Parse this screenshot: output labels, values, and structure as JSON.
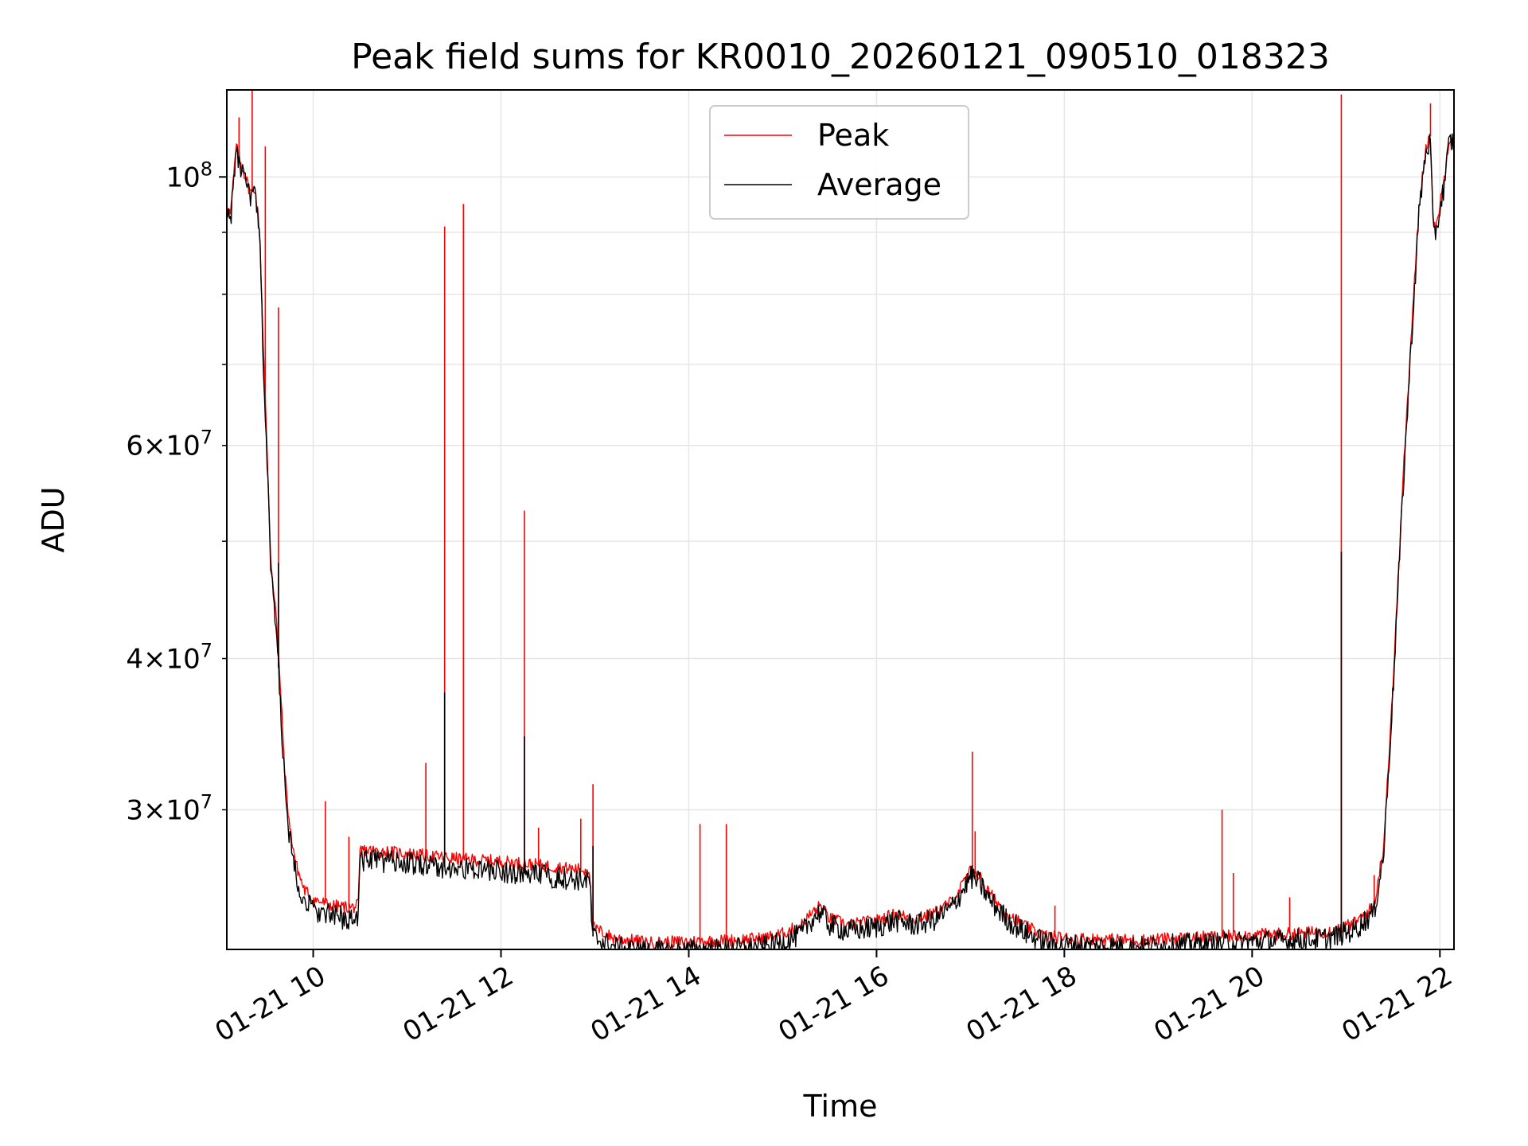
{
  "chart_data": {
    "type": "line",
    "title": "Peak field sums for KR0010_20260121_090510_018323",
    "xlabel": "Time",
    "ylabel": "ADU",
    "yscale": "log",
    "xlim": [
      9.08,
      22.15
    ],
    "ylim": [
      23000000,
      118000000
    ],
    "grid": true,
    "legend": {
      "location": "upper-center",
      "entries": [
        "Peak",
        "Average"
      ]
    },
    "x_ticks": [
      {
        "value": 10,
        "label": "01-21 10"
      },
      {
        "value": 12,
        "label": "01-21 12"
      },
      {
        "value": 14,
        "label": "01-21 14"
      },
      {
        "value": 16,
        "label": "01-21 16"
      },
      {
        "value": 18,
        "label": "01-21 18"
      },
      {
        "value": 20,
        "label": "01-21 20"
      },
      {
        "value": 22,
        "label": "01-21 22"
      }
    ],
    "y_ticks_major": [
      {
        "value": 100000000,
        "base": "10",
        "exp": "8"
      }
    ],
    "y_ticks_minor": [
      {
        "value": 30000000,
        "mant": "3",
        "base": "10",
        "exp": "7"
      },
      {
        "value": 40000000,
        "mant": "4",
        "base": "10",
        "exp": "7"
      },
      {
        "value": 60000000,
        "mant": "6",
        "base": "10",
        "exp": "7"
      }
    ],
    "y_minor_grid": [
      20000000,
      30000000,
      40000000,
      50000000,
      60000000,
      70000000,
      80000000,
      90000000
    ],
    "series": [
      {
        "name": "Peak",
        "color": "#ff0000",
        "x": [
          9.08,
          9.12,
          9.18,
          9.22,
          9.28,
          9.33,
          9.38,
          9.43,
          9.47,
          9.5,
          9.55,
          9.6,
          9.65,
          9.7,
          9.75,
          9.82,
          9.9,
          10.0,
          10.2,
          10.4,
          10.48,
          10.5,
          10.8,
          11.2,
          11.6,
          12.0,
          12.4,
          12.8,
          12.95,
          12.97,
          13.2,
          13.6,
          14.0,
          14.4,
          14.8,
          15.0,
          15.2,
          15.3,
          15.4,
          15.5,
          15.7,
          16.0,
          16.2,
          16.4,
          16.6,
          16.8,
          16.9,
          17.0,
          17.1,
          17.2,
          17.4,
          17.6,
          17.8,
          18.0,
          18.4,
          18.8,
          19.2,
          19.6,
          20.0,
          20.4,
          20.8,
          20.9,
          21.1,
          21.3,
          21.4,
          21.5,
          21.6,
          21.7,
          21.78,
          21.85,
          21.9,
          21.93,
          21.97,
          22.05,
          22.1,
          22.15
        ],
        "y": [
          95000000,
          93000000,
          106000000,
          103000000,
          100000000,
          97000000,
          98000000,
          90000000,
          72000000,
          62000000,
          48000000,
          44000000,
          38000000,
          32000000,
          29000000,
          27000000,
          25800000,
          25300000,
          25000000,
          24900000,
          25000000,
          27800000,
          27700000,
          27500000,
          27300000,
          27200000,
          27000000,
          26800000,
          26700000,
          24000000,
          23500000,
          23300000,
          23350000,
          23400000,
          23500000,
          23700000,
          24100000,
          24600000,
          25000000,
          24400000,
          24100000,
          24300000,
          24600000,
          24400000,
          24600000,
          25200000,
          25900000,
          26700000,
          26400000,
          25600000,
          24600000,
          24000000,
          23600000,
          23500000,
          23450000,
          23400000,
          23500000,
          23550000,
          23650000,
          23700000,
          23800000,
          23900000,
          24200000,
          25000000,
          28000000,
          38000000,
          55000000,
          75000000,
          95000000,
          106000000,
          108000000,
          90000000,
          92000000,
          100000000,
          108000000,
          108000000
        ],
        "spikes": [
          [
            9.21,
            112000000
          ],
          [
            9.35,
            119000000
          ],
          [
            9.49,
            106000000
          ],
          [
            9.63,
            78000000
          ],
          [
            10.13,
            30500000
          ],
          [
            10.38,
            28500000
          ],
          [
            11.2,
            32800000
          ],
          [
            11.4,
            91000000
          ],
          [
            11.6,
            95000000
          ],
          [
            12.25,
            53000000
          ],
          [
            12.4,
            29000000
          ],
          [
            12.85,
            29500000
          ],
          [
            12.98,
            31500000
          ],
          [
            14.12,
            29200000
          ],
          [
            14.4,
            29200000
          ],
          [
            15.35,
            24500000
          ],
          [
            16.2,
            24700000
          ],
          [
            17.02,
            33500000
          ],
          [
            17.05,
            28800000
          ],
          [
            17.9,
            25000000
          ],
          [
            19.68,
            30000000
          ],
          [
            19.8,
            26600000
          ],
          [
            20.4,
            25400000
          ],
          [
            20.95,
            117000000
          ],
          [
            21.3,
            26500000
          ],
          [
            21.9,
            115000000
          ]
        ]
      },
      {
        "name": "Average",
        "color": "#000000",
        "x": [
          9.08,
          9.12,
          9.18,
          9.22,
          9.28,
          9.33,
          9.38,
          9.43,
          9.47,
          9.5,
          9.55,
          9.6,
          9.65,
          9.7,
          9.75,
          9.82,
          9.9,
          10.0,
          10.2,
          10.4,
          10.48,
          10.5,
          10.8,
          11.2,
          11.6,
          12.0,
          12.4,
          12.8,
          12.95,
          12.97,
          13.2,
          13.6,
          14.0,
          14.4,
          14.8,
          15.0,
          15.2,
          15.3,
          15.4,
          15.5,
          15.7,
          16.0,
          16.2,
          16.4,
          16.6,
          16.8,
          16.9,
          17.0,
          17.1,
          17.2,
          17.4,
          17.6,
          17.8,
          18.0,
          18.4,
          18.8,
          19.2,
          19.6,
          20.0,
          20.4,
          20.8,
          20.9,
          21.1,
          21.3,
          21.4,
          21.5,
          21.6,
          21.7,
          21.78,
          21.85,
          21.9,
          21.93,
          21.97,
          22.05,
          22.1,
          22.15
        ],
        "y": [
          94000000,
          92000000,
          105000000,
          102000000,
          99000000,
          96000000,
          97000000,
          89000000,
          70000000,
          61000000,
          47000000,
          43000000,
          37000000,
          31000000,
          28400000,
          26500000,
          25300000,
          24800000,
          24500000,
          24400000,
          24500000,
          27300000,
          27200000,
          27000000,
          26800000,
          26700000,
          26500000,
          26300000,
          26200000,
          23600000,
          23100000,
          22900000,
          22950000,
          23000000,
          23100000,
          23300000,
          23700000,
          24300000,
          24700000,
          24100000,
          23800000,
          24000000,
          24300000,
          24100000,
          24300000,
          24900000,
          25600000,
          26400000,
          26100000,
          25300000,
          24300000,
          23700000,
          23300000,
          23200000,
          23150000,
          23100000,
          23200000,
          23250000,
          23350000,
          23400000,
          23500000,
          23600000,
          23900000,
          24700000,
          27500000,
          37500000,
          54000000,
          74000000,
          94000000,
          105000000,
          107000000,
          89000000,
          91000000,
          99000000,
          107000000,
          107000000
        ],
        "spikes": [
          [
            9.21,
            104000000
          ],
          [
            9.63,
            48000000
          ],
          [
            11.4,
            37500000
          ],
          [
            12.25,
            34500000
          ],
          [
            12.98,
            28000000
          ],
          [
            14.8,
            22400000
          ],
          [
            17.02,
            27000000
          ],
          [
            20.95,
            49000000
          ]
        ]
      }
    ]
  }
}
